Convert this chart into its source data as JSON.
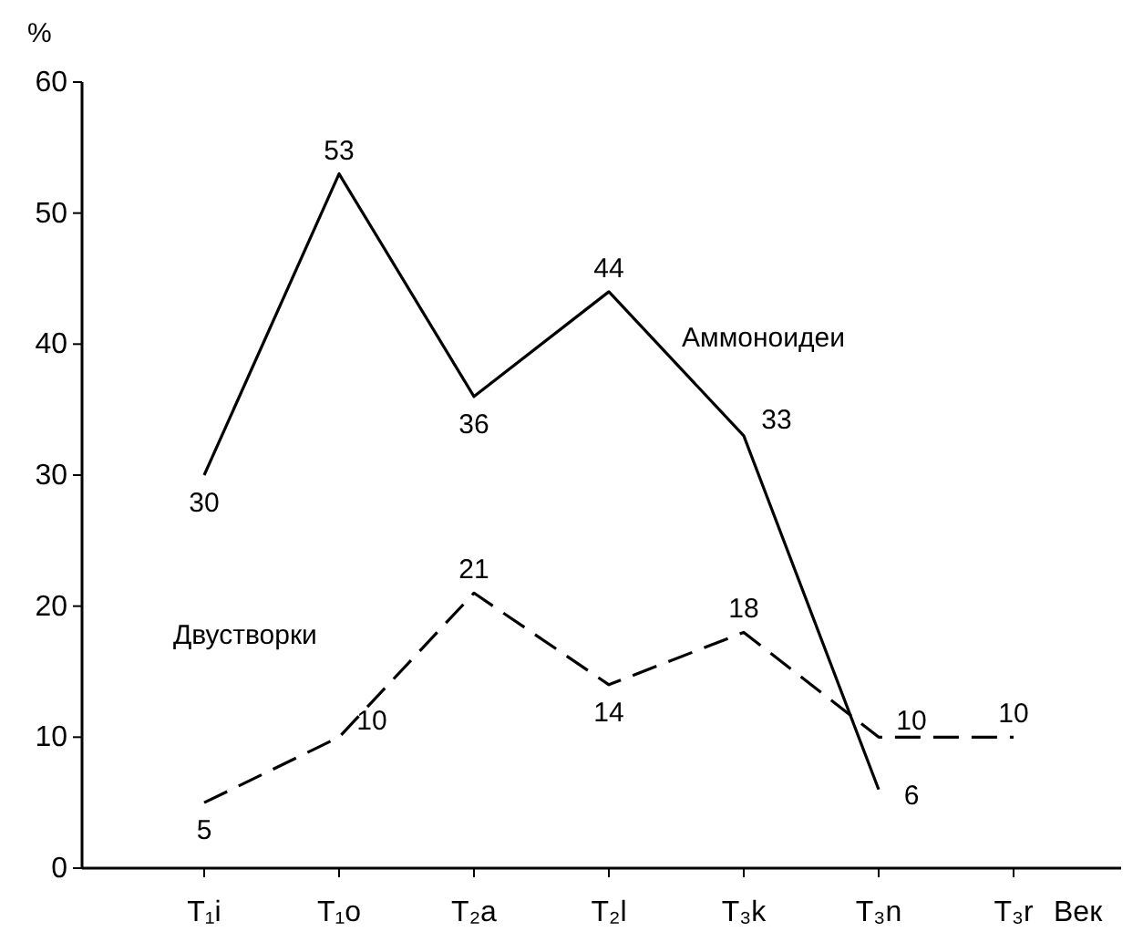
{
  "chart_data": {
    "type": "line",
    "ylabel": "%",
    "xlabel": "Век",
    "categories": [
      "T₁i",
      "T₁o",
      "T₂a",
      "T₂l",
      "T₃k",
      "T₃n",
      "T₃r"
    ],
    "ylim": [
      0,
      60
    ],
    "yticks": [
      0,
      10,
      20,
      30,
      40,
      50,
      60
    ],
    "data_labels": true,
    "grid": false,
    "marker": "none",
    "series": [
      {
        "name": "Аммоноидеи",
        "color": "#000000",
        "line_style": "solid",
        "values": [
          30,
          53,
          36,
          44,
          33,
          6,
          null
        ]
      },
      {
        "name": "Двустворки",
        "color": "#000000",
        "line_style": "dashed",
        "values": [
          5,
          10,
          21,
          14,
          18,
          10,
          10
        ]
      }
    ]
  }
}
